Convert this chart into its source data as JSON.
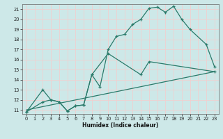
{
  "xlabel": "Humidex (Indice chaleur)",
  "bg_color": "#cde8e8",
  "grid_color": "#f0d0d0",
  "line_color": "#2a7a6a",
  "xlim": [
    -0.5,
    23.5
  ],
  "ylim": [
    10.6,
    21.5
  ],
  "yticks": [
    11,
    12,
    13,
    14,
    15,
    16,
    17,
    18,
    19,
    20,
    21
  ],
  "xticks": [
    0,
    1,
    2,
    3,
    4,
    5,
    6,
    7,
    8,
    9,
    10,
    11,
    12,
    13,
    14,
    15,
    16,
    17,
    18,
    19,
    20,
    21,
    22,
    23
  ],
  "curve1_x": [
    0,
    2,
    3,
    4,
    5,
    6,
    7,
    8,
    9,
    10,
    11,
    12,
    13,
    14,
    15,
    16,
    17,
    18,
    19,
    20,
    22,
    23
  ],
  "curve1_y": [
    10.8,
    13.0,
    12.0,
    11.8,
    10.9,
    11.4,
    11.5,
    14.5,
    13.3,
    17.0,
    18.3,
    18.5,
    19.5,
    20.0,
    21.1,
    21.2,
    20.7,
    21.3,
    20.0,
    19.0,
    17.5,
    15.3
  ],
  "curve2_x": [
    0,
    2,
    3,
    4,
    5,
    6,
    7,
    8,
    10,
    14,
    15,
    23
  ],
  "curve2_y": [
    10.8,
    11.8,
    12.0,
    11.8,
    10.9,
    11.4,
    11.5,
    14.5,
    16.6,
    14.5,
    15.8,
    14.8
  ],
  "curve3_x": [
    0,
    23
  ],
  "curve3_y": [
    11.0,
    14.8
  ]
}
